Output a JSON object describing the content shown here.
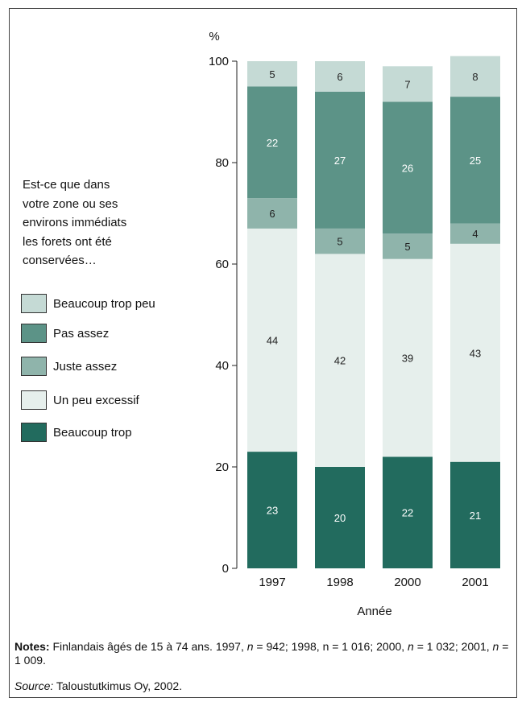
{
  "chart_data": {
    "type": "bar",
    "stacked": true,
    "categories": [
      "1997",
      "1998",
      "2000",
      "2001"
    ],
    "series": [
      {
        "name": "Beaucoup trop",
        "color": "#226b5e",
        "values": [
          23,
          20,
          22,
          21
        ]
      },
      {
        "name": "Un peu excessif",
        "color": "#e6efec",
        "values": [
          44,
          42,
          39,
          43
        ]
      },
      {
        "name": "Juste assez",
        "color": "#8fb4ab",
        "values": [
          6,
          5,
          5,
          4
        ]
      },
      {
        "name": "Pas assez",
        "color": "#5c9387",
        "values": [
          22,
          27,
          26,
          25
        ]
      },
      {
        "name": "Beaucoup trop peu",
        "color": "#c5dad5",
        "values": [
          5,
          6,
          7,
          8
        ]
      }
    ],
    "ylabel": "%",
    "xlabel": "Année",
    "ylim": [
      0,
      100
    ],
    "yticks": [
      0,
      20,
      40,
      60,
      80,
      100
    ],
    "legend_title_lines": [
      "Est-ce que dans",
      "votre zone ou ses",
      "environs immédiats",
      "les forets ont été",
      "conservées…"
    ],
    "legend_order": [
      "Beaucoup trop peu",
      "Pas assez",
      "Juste assez",
      "Un peu excessif",
      "Beaucoup trop"
    ],
    "legend_placement": "left",
    "grid": false
  },
  "notes": {
    "label": "Notes:",
    "text_1": " Finlandais âgés de 15 à 74 ans. 1997, ",
    "n1": "n",
    "text_2": " = 942; 1998, n = 1 016; 2000, ",
    "n2": "n",
    "text_3": " = 1 032; 2001, ",
    "n3": "n",
    "text_4": " = 1 009."
  },
  "source": {
    "label": "Source:",
    "text": " Taloustutkimus Oy, 2002."
  }
}
